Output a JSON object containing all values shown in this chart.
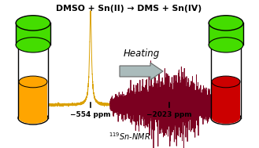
{
  "title": "DMSO + Sn(II) → DMS + Sn(IV)",
  "title_fontsize": 7.8,
  "heating_text": "Heating",
  "nmr_label": "$^{119}$Sn-NMR",
  "peak1_label": "−554 ppm",
  "peak2_label": "−2023 ppm",
  "bg_color": "#ffffff",
  "vial_left_liquid_color": "#FFA500",
  "vial_right_liquid_color": "#CC0000",
  "vial_cap_color": "#44DD00",
  "vial_body_color": "#ffffff",
  "nmr_color1": "#DAA000",
  "nmr_color2": "#7B0020",
  "arrow_fill": "#aabbbb",
  "arrow_edge": "#666666",
  "text_color": "#000000"
}
